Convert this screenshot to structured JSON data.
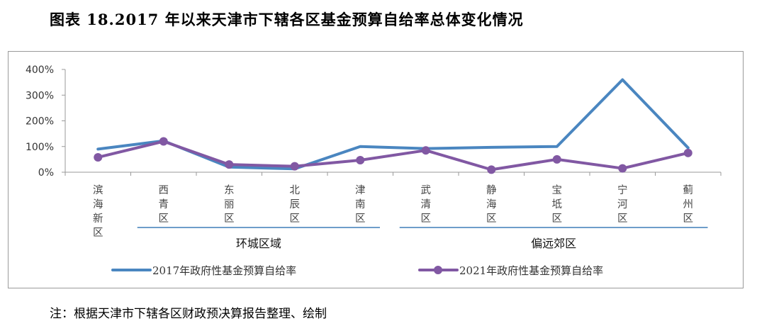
{
  "title": "图表 18.2017 年以来天津市下辖各区基金预算自给率总体变化情况",
  "note": "注：根据天津市下辖各区财政预决算报告整理、绘制",
  "chart_data": {
    "type": "line",
    "categories": [
      "滨海新区",
      "西青区",
      "东丽区",
      "北辰区",
      "津南区",
      "武清区",
      "静海区",
      "宝坻区",
      "宁河区",
      "蓟州区"
    ],
    "groups": [
      {
        "name": "环城区域",
        "categories": [
          "西青区",
          "东丽区",
          "北辰区",
          "津南区"
        ]
      },
      {
        "name": "偏远郊区",
        "categories": [
          "武清区",
          "静海区",
          "宝坻区",
          "宁河区",
          "蓟州区"
        ]
      }
    ],
    "series": [
      {
        "name": "2017年政府性基金预算自给率",
        "color": "#4a86c0",
        "values": [
          90,
          122,
          20,
          13,
          100,
          92,
          97,
          100,
          360,
          95
        ]
      },
      {
        "name": "2021年政府性基金预算自给率",
        "color": "#8158a3",
        "values": [
          58,
          120,
          30,
          23,
          47,
          85,
          10,
          50,
          15,
          75
        ]
      }
    ],
    "ylim": [
      0,
      400
    ],
    "yticks": [
      "0%",
      "100%",
      "200%",
      "300%",
      "400%"
    ],
    "grid": false,
    "legend": "bottom"
  }
}
